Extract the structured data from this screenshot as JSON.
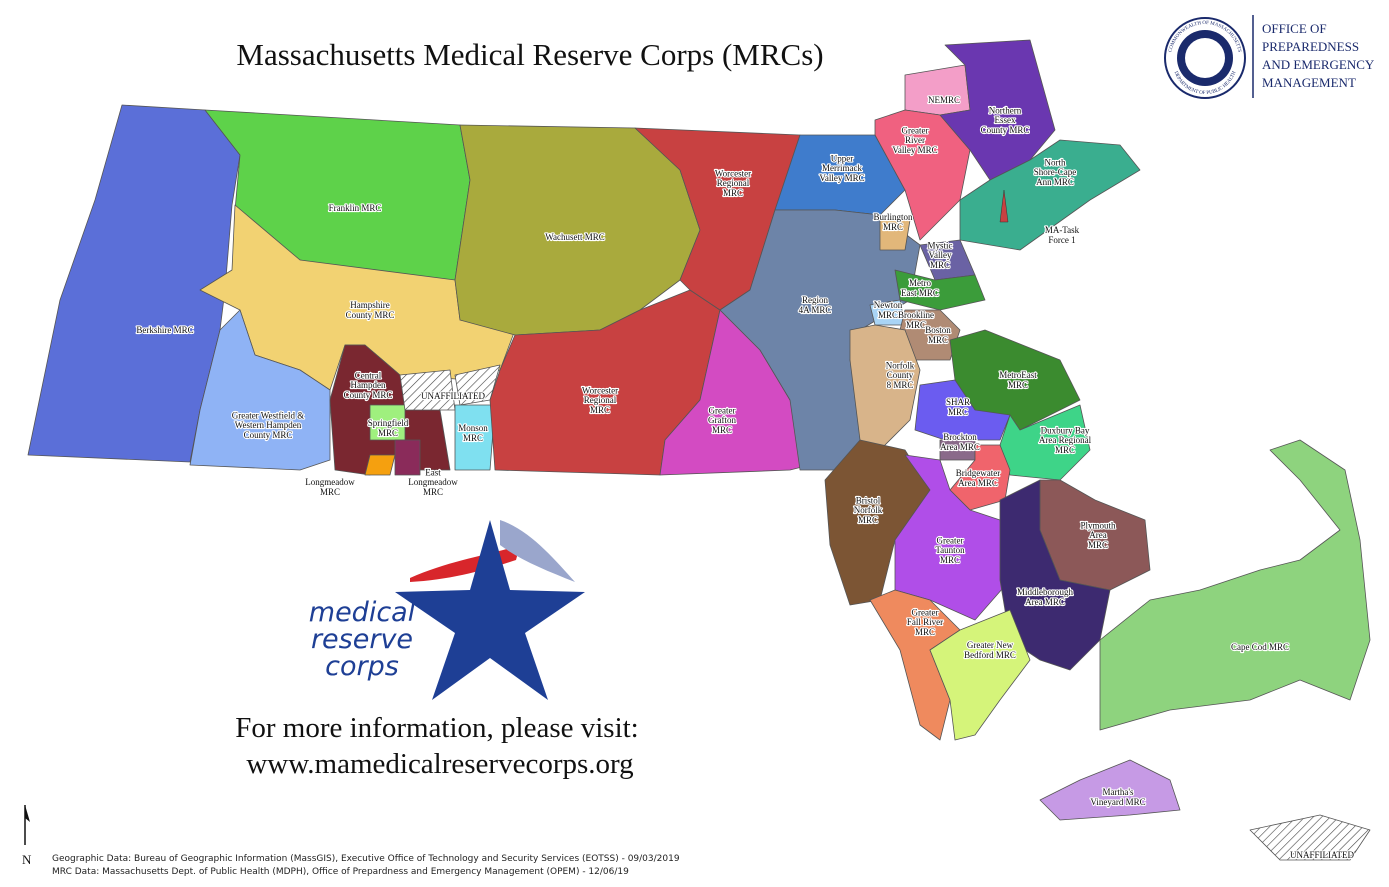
{
  "title": "Massachusetts Medical Reserve Corps (MRCs)",
  "seal": {
    "top": "COMMONWEALTH OF MASSACHUSETTS",
    "bottom": "DEPARTMENT OF PUBLIC HEALTH"
  },
  "office": [
    "OFFICE OF",
    "PREPAREDNESS",
    "AND EMERGENCY",
    "MANAGEMENT"
  ],
  "regions": [
    {
      "lines": [
        "Berkshire MRC"
      ]
    },
    {
      "lines": [
        "Franklin MRC"
      ]
    },
    {
      "lines": [
        "Hampshire",
        "County MRC"
      ]
    },
    {
      "lines": [
        "Greater Westfield &",
        "Western Hampden",
        "County MRC"
      ]
    },
    {
      "lines": [
        "Central",
        "Hampden",
        "County MRC"
      ]
    },
    {
      "lines": [
        "Springfield",
        "MRC"
      ]
    },
    {
      "lines": [
        "Longmeadow",
        "MRC"
      ]
    },
    {
      "lines": [
        "East",
        "Longmeadow",
        "MRC"
      ]
    },
    {
      "lines": [
        "UNAFFILIATED"
      ]
    },
    {
      "lines": [
        "Monson",
        "MRC"
      ]
    },
    {
      "lines": [
        "Wachusett MRC"
      ]
    },
    {
      "lines": [
        "Worcester",
        "Regional",
        "MRC"
      ]
    },
    {
      "lines": [
        "Worcester",
        "Regional",
        "MRC"
      ]
    },
    {
      "lines": [
        "Greater",
        "Grafton",
        "MRC"
      ]
    },
    {
      "lines": [
        "Upper",
        "Merrimack",
        "Valley MRC"
      ]
    },
    {
      "lines": [
        "Region",
        "4A MRC"
      ]
    },
    {
      "lines": [
        "NEMRC"
      ]
    },
    {
      "lines": [
        "Greater",
        "River",
        "Valley MRC"
      ]
    },
    {
      "lines": [
        "Northern",
        "Essex",
        "County MRC"
      ]
    },
    {
      "lines": [
        "North",
        "Shore-Cape",
        "Ann MRC"
      ]
    },
    {
      "lines": [
        "MA-Task",
        "Force 1"
      ]
    },
    {
      "lines": [
        "Burlington",
        "MRC"
      ]
    },
    {
      "lines": [
        "Mystic",
        "Valley",
        "MRC"
      ]
    },
    {
      "lines": [
        "Metro",
        "East MRC"
      ]
    },
    {
      "lines": [
        "Newton",
        "MRC"
      ]
    },
    {
      "lines": [
        "Brookline",
        "MRC"
      ]
    },
    {
      "lines": [
        "Boston",
        "MRC"
      ]
    },
    {
      "lines": [
        "Norfolk",
        "County",
        "8 MRC"
      ]
    },
    {
      "lines": [
        "MetroEast",
        "MRC"
      ]
    },
    {
      "lines": [
        "SHAR",
        "MRC"
      ]
    },
    {
      "lines": [
        "Brockton",
        "Area MRC"
      ]
    },
    {
      "lines": [
        "Duxbury Bay",
        "Area Regional",
        "MRC"
      ]
    },
    {
      "lines": [
        "Bridgewater",
        "Area MRC"
      ]
    },
    {
      "lines": [
        "Bristol",
        "Norfolk",
        "MRC"
      ]
    },
    {
      "lines": [
        "Greater",
        "Taunton",
        "MRC"
      ]
    },
    {
      "lines": [
        "Plymouth",
        "Area",
        "MRC"
      ]
    },
    {
      "lines": [
        "Middleborough",
        "Area MRC"
      ]
    },
    {
      "lines": [
        "Greater",
        "Fall River",
        "MRC"
      ]
    },
    {
      "lines": [
        "Greater New",
        "Bedford MRC"
      ]
    },
    {
      "lines": [
        "Cape Cod MRC"
      ]
    },
    {
      "lines": [
        "Martha's",
        "Vineyard MRC"
      ]
    },
    {
      "lines": [
        "UNAFFILIATED"
      ]
    }
  ],
  "logo": [
    "medical",
    "reserve",
    "corps"
  ],
  "info": [
    "For more information, please visit:",
    "www.mamedicalreservecorps.org"
  ],
  "sources": [
    "Geographic Data: Bureau of Geographic Information (MassGIS), Executive Office of Technology and Security Services (EOTSS) - 09/03/2019",
    "MRC Data: Massachusetts Dept. of Public Health (MDPH), Office of Prepardness and Emergency Management (OPEM) - 12/06/19"
  ],
  "north": "N"
}
